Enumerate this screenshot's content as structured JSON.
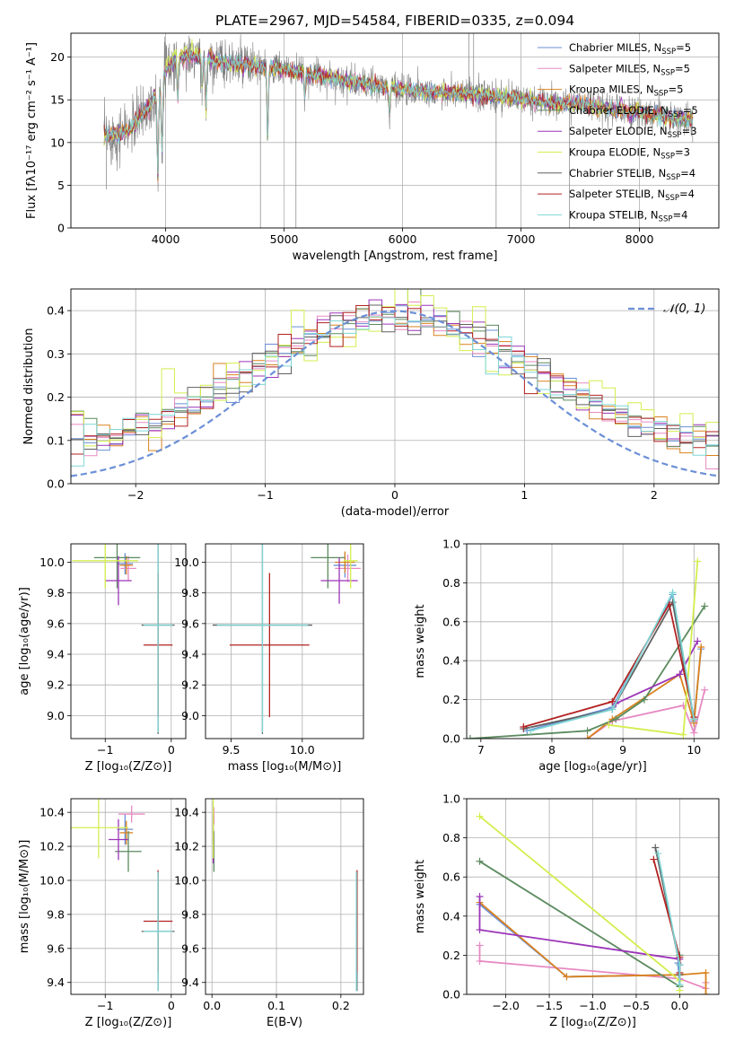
{
  "figure": {
    "title": "PLATE=2967, MJD=54584, FIBERID=0335, z=0.094",
    "background": "#ffffff"
  },
  "series_legend": [
    {
      "label": "Chabrier MILES, N",
      "sub": "SSP",
      "suffix": "=5",
      "color": "#6b8fd6"
    },
    {
      "label": "Salpeter MILES, N",
      "sub": "SSP",
      "suffix": "=5",
      "color": "#e78ac3"
    },
    {
      "label": "Kroupa MILES, N",
      "sub": "SSP",
      "suffix": "=5",
      "color": "#d9821e"
    },
    {
      "label": "Chabrier ELODIE, N",
      "sub": "SSP",
      "suffix": "=5",
      "color": "#5b8a5e"
    },
    {
      "label": "Salpeter ELODIE, N",
      "sub": "SSP",
      "suffix": "=3",
      "color": "#9b34b8"
    },
    {
      "label": "Kroupa ELODIE, N",
      "sub": "SSP",
      "suffix": "=3",
      "color": "#d4ee4f"
    },
    {
      "label": "Chabrier STELIB, N",
      "sub": "SSP",
      "suffix": "=4",
      "color": "#606060"
    },
    {
      "label": "Salpeter STELIB, N",
      "sub": "SSP",
      "suffix": "=4",
      "color": "#b22222"
    },
    {
      "label": "Kroupa STELIB, N",
      "sub": "SSP",
      "suffix": "=4",
      "color": "#7fd6d6"
    }
  ],
  "chart_data": [
    {
      "id": "spectrum",
      "type": "line",
      "xlabel": "wavelength [Angstrom, rest frame]",
      "ylabel": "Flux [fλ10⁻¹⁷ erg cm⁻² s⁻¹ A⁻¹]",
      "xlim": [
        3200,
        8670
      ],
      "ylim": [
        0,
        22.8
      ],
      "xticks": [
        4000,
        5000,
        6000,
        7000,
        8000
      ],
      "yticks": [
        0,
        5,
        10,
        15,
        20
      ],
      "observed_color": "#808080",
      "continuum": {
        "x": [
          3480,
          3600,
          3700,
          3780,
          3850,
          3900,
          3960,
          4000,
          4100,
          4200,
          4300,
          4400,
          4500,
          4700,
          4900,
          5100,
          5300,
          5500,
          5700,
          5900,
          6100,
          6300,
          6500,
          6700,
          6900,
          7100,
          7300,
          7500,
          7700,
          7900,
          8100,
          8300,
          8450
        ],
        "y": [
          10.8,
          10.9,
          11.5,
          13.0,
          14.0,
          15.2,
          16.5,
          18.5,
          19.8,
          20.0,
          20.0,
          19.7,
          19.4,
          19.0,
          18.7,
          18.3,
          17.9,
          17.3,
          16.8,
          16.4,
          16.1,
          15.8,
          15.7,
          15.5,
          15.2,
          14.9,
          14.6,
          14.5,
          14.1,
          13.7,
          13.3,
          12.9,
          12.6
        ]
      },
      "absorption_features": [
        {
          "x": 3934,
          "depth": 10.0
        },
        {
          "x": 3969,
          "depth": 8.0
        },
        {
          "x": 4102,
          "depth": 5.0
        },
        {
          "x": 4308,
          "depth": 3.5
        },
        {
          "x": 4340,
          "depth": 6.0
        },
        {
          "x": 4861,
          "depth": 8.0
        },
        {
          "x": 5175,
          "depth": 3.0
        },
        {
          "x": 5890,
          "depth": 3.0
        }
      ],
      "outliers": [
        {
          "x": 3500,
          "y": 4.5
        },
        {
          "x": 4800,
          "y": 0.0
        },
        {
          "x": 5100,
          "y": 0.0
        },
        {
          "x": 6790,
          "y": 0.0
        },
        {
          "x": 7410,
          "y": 0.0
        },
        {
          "x": 6560,
          "y": 22.8
        },
        {
          "x": 6600,
          "y": 22.8
        }
      ]
    },
    {
      "id": "residuals",
      "type": "histogram",
      "xlabel": "(data-model)/error",
      "ylabel": "Normed distribution",
      "xlim": [
        -2.5,
        2.5
      ],
      "ylim": [
        0,
        0.45
      ],
      "xticks": [
        -2,
        -1,
        0,
        1,
        2
      ],
      "yticks": [
        0.0,
        0.1,
        0.2,
        0.3,
        0.4
      ],
      "reference_curve": {
        "label": "𝒩(0, 1)",
        "color": "#6b8fd6",
        "mu": 0,
        "sigma": 1
      },
      "bin_width": 0.1,
      "bin_start": -2.5
    },
    {
      "id": "age_vs_Z",
      "type": "errorbar",
      "xlabel": "Z [log₁₀(Z/Z⊙)]",
      "ylabel": "age  [log₁₀(age/yr)]",
      "xlim": [
        -1.52,
        0.22
      ],
      "ylim": [
        8.85,
        10.12
      ],
      "xticks": [
        -1,
        0
      ],
      "yticks": [
        9.0,
        9.2,
        9.4,
        9.6,
        9.8,
        10.0
      ],
      "points": [
        {
          "x": -0.7,
          "y": 9.99,
          "xerr": 0.12,
          "yerr": 0.07,
          "series": 0
        },
        {
          "x": -0.65,
          "y": 9.96,
          "xerr": 0.12,
          "yerr": 0.08,
          "series": 1
        },
        {
          "x": -0.68,
          "y": 9.98,
          "xerr": 0.1,
          "yerr": 0.06,
          "series": 2
        },
        {
          "x": -0.82,
          "y": 10.03,
          "xerr": 0.35,
          "yerr": 0.2,
          "series": 3
        },
        {
          "x": -0.8,
          "y": 9.88,
          "xerr": 0.2,
          "yerr": 0.16,
          "series": 4
        },
        {
          "x": -1.0,
          "y": 10.01,
          "xerr": 0.5,
          "yerr": 0.18,
          "series": 5
        },
        {
          "x": -0.2,
          "y": 9.59,
          "xerr": 0.25,
          "yerr": 0.71,
          "series": 6
        },
        {
          "x": -0.2,
          "y": 9.46,
          "xerr": 0.22,
          "yerr": 0.47,
          "series": 7
        },
        {
          "x": -0.2,
          "y": 9.59,
          "xerr": 0.22,
          "yerr": 0.7,
          "series": 8
        }
      ]
    },
    {
      "id": "age_vs_mass",
      "type": "errorbar",
      "xlabel": "mass [log₁₀(M/M⊙)]",
      "ylabel": "",
      "xlim": [
        9.32,
        10.43
      ],
      "ylim": [
        8.85,
        10.12
      ],
      "xticks": [
        9.5,
        10.0
      ],
      "yticks": [
        9.0,
        9.2,
        9.4,
        9.6,
        9.8,
        10.0
      ],
      "points": [
        {
          "x": 10.3,
          "y": 9.98,
          "xerr": 0.08,
          "yerr": 0.08,
          "series": 0
        },
        {
          "x": 10.32,
          "y": 9.96,
          "xerr": 0.09,
          "yerr": 0.09,
          "series": 1
        },
        {
          "x": 10.3,
          "y": 10.0,
          "xerr": 0.07,
          "yerr": 0.07,
          "series": 2
        },
        {
          "x": 10.18,
          "y": 10.03,
          "xerr": 0.12,
          "yerr": 0.2,
          "series": 3
        },
        {
          "x": 10.26,
          "y": 9.88,
          "xerr": 0.13,
          "yerr": 0.15,
          "series": 4
        },
        {
          "x": 10.34,
          "y": 10.01,
          "xerr": 0.05,
          "yerr": 0.18,
          "series": 5
        },
        {
          "x": 9.72,
          "y": 9.59,
          "xerr": 0.35,
          "yerr": 0.71,
          "series": 6
        },
        {
          "x": 9.77,
          "y": 9.46,
          "xerr": 0.28,
          "yerr": 0.47,
          "series": 7
        },
        {
          "x": 9.72,
          "y": 9.59,
          "xerr": 0.32,
          "yerr": 0.7,
          "series": 8
        }
      ]
    },
    {
      "id": "weight_vs_age",
      "type": "line",
      "xlabel": "age  [log₁₀(age/yr)]",
      "ylabel": "mass weight",
      "xlim": [
        6.8,
        10.35
      ],
      "ylim": [
        0,
        1.0
      ],
      "xticks": [
        7,
        8,
        9,
        10
      ],
      "yticks": [
        0.0,
        0.2,
        0.4,
        0.6,
        0.8,
        1.0
      ],
      "series": [
        {
          "series": 0,
          "x": [
            7.65,
            8.85,
            9.7,
            10.0,
            10.1
          ],
          "y": [
            0.04,
            0.16,
            0.74,
            0.09,
            0.46
          ]
        },
        {
          "series": 1,
          "x": [
            8.5,
            8.85,
            9.85,
            10.0,
            10.15
          ],
          "y": [
            0.0,
            0.09,
            0.17,
            0.03,
            0.25
          ]
        },
        {
          "series": 2,
          "x": [
            8.5,
            8.85,
            9.8,
            10.0,
            10.1
          ],
          "y": [
            0.0,
            0.1,
            0.33,
            0.08,
            0.47
          ]
        },
        {
          "series": 3,
          "x": [
            6.85,
            8.5,
            8.9,
            9.3,
            10.15
          ],
          "y": [
            0.0,
            0.04,
            0.1,
            0.2,
            0.68
          ]
        },
        {
          "series": 4,
          "x": [
            8.9,
            9.8,
            10.05
          ],
          "y": [
            0.18,
            0.33,
            0.5
          ]
        },
        {
          "series": 5,
          "x": [
            8.8,
            9.85,
            10.05
          ],
          "y": [
            0.07,
            0.02,
            0.91
          ]
        },
        {
          "series": 6,
          "x": [
            7.6,
            8.85,
            9.7,
            10.0
          ],
          "y": [
            0.05,
            0.15,
            0.7,
            0.1
          ]
        },
        {
          "series": 7,
          "x": [
            7.6,
            8.85,
            9.65,
            10.0
          ],
          "y": [
            0.06,
            0.19,
            0.69,
            0.11
          ]
        },
        {
          "series": 8,
          "x": [
            7.7,
            8.85,
            9.7,
            10.0
          ],
          "y": [
            0.04,
            0.15,
            0.75,
            0.1
          ]
        }
      ]
    },
    {
      "id": "mass_vs_Z",
      "type": "errorbar",
      "xlabel": "Z [log₁₀(Z/Z⊙)]",
      "ylabel": "mass [log₁₀(M/M⊙)]",
      "xlim": [
        -1.52,
        0.22
      ],
      "ylim": [
        9.33,
        10.48
      ],
      "xticks": [
        -1,
        0
      ],
      "yticks": [
        9.4,
        9.6,
        9.8,
        10.0,
        10.2,
        10.4
      ],
      "points": [
        {
          "x": -0.7,
          "y": 10.3,
          "xerr": 0.12,
          "yerr": 0.09,
          "series": 0
        },
        {
          "x": -0.6,
          "y": 10.39,
          "xerr": 0.2,
          "yerr": 0.05,
          "series": 1
        },
        {
          "x": -0.68,
          "y": 10.28,
          "xerr": 0.1,
          "yerr": 0.07,
          "series": 2
        },
        {
          "x": -0.65,
          "y": 10.17,
          "xerr": 0.2,
          "yerr": 0.12,
          "series": 3
        },
        {
          "x": -0.8,
          "y": 10.24,
          "xerr": 0.15,
          "yerr": 0.12,
          "series": 4
        },
        {
          "x": -1.1,
          "y": 10.31,
          "xerr": 0.45,
          "yerr": 0.18,
          "series": 5
        },
        {
          "x": -0.2,
          "y": 9.7,
          "xerr": 0.25,
          "yerr": 0.35,
          "series": 6
        },
        {
          "x": -0.2,
          "y": 9.76,
          "xerr": 0.22,
          "yerr": 0.3,
          "series": 7
        },
        {
          "x": -0.2,
          "y": 9.7,
          "xerr": 0.22,
          "yerr": 0.35,
          "series": 8
        }
      ]
    },
    {
      "id": "mass_vs_ebv",
      "type": "errorbar",
      "xlabel": "E(B-V)",
      "ylabel": "",
      "xlim": [
        -0.01,
        0.235
      ],
      "ylim": [
        9.33,
        10.48
      ],
      "xticks": [
        0.0,
        0.1,
        0.2
      ],
      "yticks": [
        9.4,
        9.6,
        9.8,
        10.0,
        10.2,
        10.4
      ],
      "points": [
        {
          "x": 0.002,
          "y": 10.3,
          "xerr": 0.001,
          "yerr": 0.09,
          "series": 0
        },
        {
          "x": 0.003,
          "y": 10.38,
          "xerr": 0.001,
          "yerr": 0.05,
          "series": 1
        },
        {
          "x": 0.002,
          "y": 10.28,
          "xerr": 0.001,
          "yerr": 0.07,
          "series": 2
        },
        {
          "x": 0.003,
          "y": 10.17,
          "xerr": 0.001,
          "yerr": 0.12,
          "series": 3
        },
        {
          "x": 0.002,
          "y": 10.24,
          "xerr": 0.001,
          "yerr": 0.14,
          "series": 4
        },
        {
          "x": 0.002,
          "y": 10.31,
          "xerr": 0.001,
          "yerr": 0.18,
          "series": 5
        },
        {
          "x": 0.225,
          "y": 9.7,
          "xerr": 0.001,
          "yerr": 0.35,
          "series": 6
        },
        {
          "x": 0.225,
          "y": 9.76,
          "xerr": 0.001,
          "yerr": 0.3,
          "series": 7
        },
        {
          "x": 0.224,
          "y": 9.7,
          "xerr": 0.001,
          "yerr": 0.35,
          "series": 8
        }
      ]
    },
    {
      "id": "weight_vs_Z",
      "type": "line",
      "xlabel": "Z [log₁₀(Z/Z⊙)]",
      "ylabel": "mass weight",
      "xlim": [
        -2.45,
        0.45
      ],
      "ylim": [
        0,
        1.0
      ],
      "xticks": [
        -2.0,
        -1.5,
        -1.0,
        -0.5,
        0.0
      ],
      "yticks": [
        0.0,
        0.2,
        0.4,
        0.6,
        0.8,
        1.0
      ],
      "series": [
        {
          "series": 0,
          "x": [
            -2.3,
            -1.3,
            0.0,
            0.0,
            -0.02
          ],
          "y": [
            0.46,
            0.09,
            0.1,
            0.04,
            0.16
          ]
        },
        {
          "series": 1,
          "x": [
            -2.3,
            -2.3,
            0.0,
            0.3,
            0.3
          ],
          "y": [
            0.25,
            0.17,
            0.08,
            0.03,
            0.06
          ]
        },
        {
          "series": 2,
          "x": [
            -2.3,
            -1.3,
            0.0,
            0.3,
            0.3
          ],
          "y": [
            0.47,
            0.09,
            0.1,
            0.11,
            0.0
          ]
        },
        {
          "series": 3,
          "x": [
            -2.3,
            0.0,
            0.0
          ],
          "y": [
            0.68,
            0.04,
            0.2
          ]
        },
        {
          "series": 4,
          "x": [
            -2.3,
            -2.3,
            0.0
          ],
          "y": [
            0.5,
            0.33,
            0.18
          ]
        },
        {
          "series": 5,
          "x": [
            -2.3,
            0.0,
            0.0
          ],
          "y": [
            0.91,
            0.07,
            0.02
          ]
        },
        {
          "series": 6,
          "x": [
            -0.28,
            0.0,
            0.0
          ],
          "y": [
            0.75,
            0.15,
            0.1
          ]
        },
        {
          "series": 7,
          "x": [
            -0.3,
            0.0,
            0.0
          ],
          "y": [
            0.69,
            0.19,
            0.11
          ]
        },
        {
          "series": 8,
          "x": [
            -0.25,
            0.0,
            0.0
          ],
          "y": [
            0.72,
            0.15,
            0.05
          ]
        }
      ]
    }
  ]
}
